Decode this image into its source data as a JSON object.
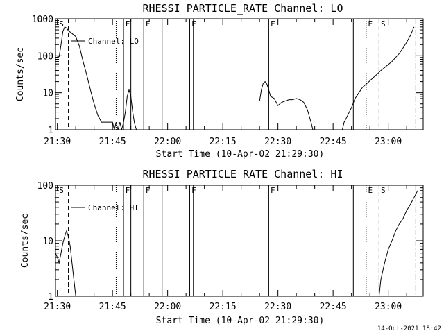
{
  "chart_data": [
    {
      "type": "line",
      "title": "RHESSI PARTICLE_RATE Channel: LO",
      "xlabel": "Start Time (10-Apr-02 21:29:30)",
      "ylabel": "Counts/sec",
      "y_scale": "log",
      "ylim": [
        1,
        1000
      ],
      "xlim": [
        "21:29:30",
        "23:09:30"
      ],
      "x_ticks": [
        "21:30",
        "21:45",
        "22:00",
        "22:15",
        "22:30",
        "22:45",
        "23:00"
      ],
      "y_ticks": [
        "1",
        "10",
        "100",
        "1000"
      ],
      "legend": {
        "entries": [
          "Channel: LO"
        ],
        "placement": "top-left"
      },
      "series": [
        {
          "name": "Channel: LO",
          "segments": [
            {
              "x": [
                "21:29:30",
                "21:30:30",
                "21:31:00",
                "21:31:30",
                "21:32:00",
                "21:32:30",
                "21:33:00",
                "21:34:00",
                "21:35:00",
                "21:36:00",
                "21:37:00",
                "21:38:00",
                "21:39:00",
                "21:40:00",
                "21:41:00",
                "21:42:00",
                "21:43:00",
                "21:44:00",
                "21:45:00",
                "21:45:30",
                "21:46:00",
                "21:46:30",
                "21:47:00",
                "21:47:30",
                "21:48:00",
                "21:48:30",
                "21:49:00",
                "21:49:30",
                "21:50:00",
                "21:50:30",
                "21:51:00",
                "21:51:30"
              ],
              "y": [
                90,
                95,
                200,
                450,
                600,
                560,
                480,
                400,
                330,
                180,
                70,
                30,
                12,
                5,
                2.5,
                1.6,
                1.6,
                1.6,
                1.6,
                1.0,
                1.6,
                1.0,
                1.6,
                1.0,
                1.6,
                3,
                8,
                12,
                8,
                3,
                1.5,
                1.0
              ]
            },
            {
              "x": [
                "22:25:00",
                "22:25:30",
                "22:26:00",
                "22:26:30",
                "22:27:00",
                "22:27:30",
                "22:28:00",
                "22:29:00",
                "22:30:00",
                "22:31:00",
                "22:32:00",
                "22:33:00",
                "22:34:00",
                "22:35:00",
                "22:36:00",
                "22:37:00",
                "22:38:00",
                "22:39:00",
                "22:39:30"
              ],
              "y": [
                6,
                12,
                18,
                20,
                17,
                12,
                8,
                7,
                4.5,
                5.5,
                6,
                6.5,
                6.5,
                7,
                6.5,
                5.5,
                3.5,
                1.6,
                1.0
              ]
            },
            {
              "x": [
                "22:47:30",
                "22:48:00",
                "22:49:00",
                "22:50:00",
                "22:51:00",
                "22:52:00",
                "22:53:00",
                "22:54:00",
                "22:55:00",
                "22:56:00",
                "22:57:00",
                "22:58:00",
                "22:59:00",
                "23:00:00",
                "23:01:00",
                "23:02:00",
                "23:03:00",
                "23:04:00",
                "23:05:00",
                "23:06:00",
                "23:07:00"
              ],
              "y": [
                1.0,
                1.6,
                2.5,
                4,
                7,
                10,
                14,
                17,
                21,
                26,
                32,
                40,
                48,
                58,
                70,
                90,
                115,
                160,
                230,
                350,
                600
              ]
            }
          ]
        }
      ],
      "markers": {
        "solid": [
          "21:48:00",
          "21:50:00",
          "21:53:30",
          "21:58:30",
          "22:06:00",
          "22:07:00",
          "22:27:30",
          "22:50:30"
        ],
        "dotted": [
          "21:46:00",
          "22:54:00"
        ],
        "dashed": [
          "21:33:00",
          "22:57:30"
        ],
        "dash_dot": [
          "23:07:30"
        ]
      },
      "labels": [
        {
          "text": "S",
          "x": "21:30:30"
        },
        {
          "text": "F",
          "x": "21:48:30"
        },
        {
          "text": "F",
          "x": "21:54:00"
        },
        {
          "text": "F",
          "x": "22:06:30"
        },
        {
          "text": "F",
          "x": "22:28:00"
        },
        {
          "text": "E",
          "x": "22:54:30"
        },
        {
          "text": "S",
          "x": "22:58:00"
        }
      ]
    },
    {
      "type": "line",
      "title": "RHESSI PARTICLE_RATE Channel: HI",
      "xlabel": "Start Time (10-Apr-02 21:29:30)",
      "ylabel": "Counts/sec",
      "y_scale": "log",
      "ylim": [
        1,
        100
      ],
      "xlim": [
        "21:29:30",
        "23:09:30"
      ],
      "x_ticks": [
        "21:30",
        "21:45",
        "22:00",
        "22:15",
        "22:30",
        "22:45",
        "23:00"
      ],
      "y_ticks": [
        "1",
        "10",
        "100"
      ],
      "legend": {
        "entries": [
          "Channel: HI"
        ],
        "placement": "top-left"
      },
      "series": [
        {
          "name": "Channel: HI",
          "segments": [
            {
              "x": [
                "21:29:30",
                "21:30:00",
                "21:30:30",
                "21:31:00",
                "21:31:30",
                "21:32:00",
                "21:32:30",
                "21:33:00",
                "21:33:30",
                "21:34:00",
                "21:34:30",
                "21:35:00"
              ],
              "y": [
                6,
                5,
                4,
                6,
                9,
                12,
                15,
                12,
                8,
                4,
                2,
                1.0
              ]
            },
            {
              "x": [
                "22:57:30",
                "22:58:00",
                "22:59:00",
                "23:00:00",
                "23:01:00",
                "23:02:00",
                "23:03:00",
                "23:04:00",
                "23:05:00",
                "23:06:00",
                "23:07:00",
                "23:08:00"
              ],
              "y": [
                1.0,
                2,
                4,
                7,
                10,
                15,
                20,
                25,
                35,
                45,
                60,
                80
              ]
            }
          ]
        }
      ],
      "markers": {
        "solid": [
          "21:48:00",
          "21:50:00",
          "21:53:30",
          "21:58:30",
          "22:06:00",
          "22:07:00",
          "22:27:30",
          "22:50:30"
        ],
        "dotted": [
          "21:46:00",
          "22:54:00"
        ],
        "dashed": [
          "21:33:00",
          "22:57:30"
        ],
        "dash_dot": [
          "23:07:30"
        ]
      },
      "labels": [
        {
          "text": "S",
          "x": "21:30:30"
        },
        {
          "text": "F",
          "x": "21:48:30"
        },
        {
          "text": "F",
          "x": "21:54:00"
        },
        {
          "text": "F",
          "x": "22:06:30"
        },
        {
          "text": "F",
          "x": "22:28:00"
        },
        {
          "text": "E",
          "x": "22:54:30"
        },
        {
          "text": "S",
          "x": "22:58:00"
        }
      ]
    }
  ],
  "footer": {
    "timestamp": "14-Oct-2021 18:42"
  }
}
